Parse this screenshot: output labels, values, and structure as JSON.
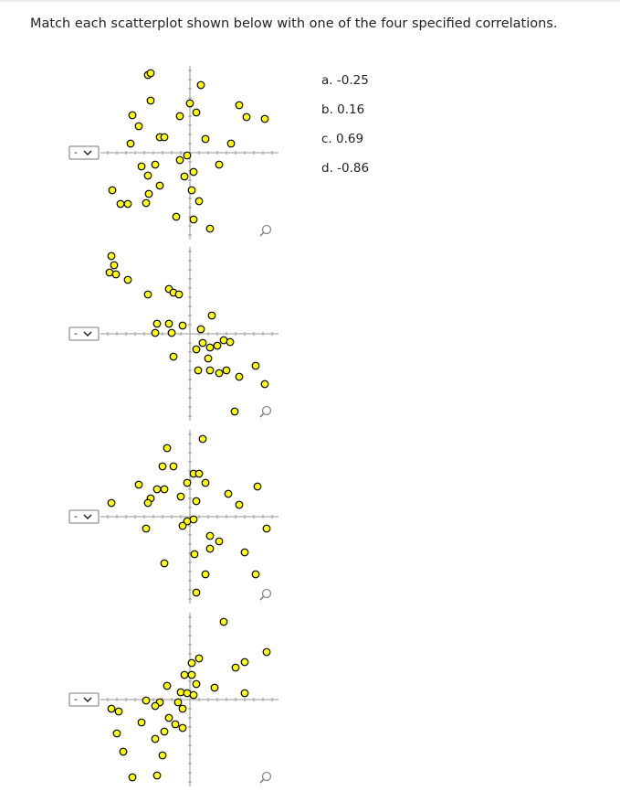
{
  "question": "Match each scatterplot shown below with one of the four specified correlations.",
  "options": [
    "a. -0.25",
    "b. 0.16",
    "c. 0.69",
    "d. -0.86"
  ],
  "plots": [
    {
      "selection": "-",
      "points": {
        "x": [
          -4.6,
          -4.3,
          1.2,
          -4.3,
          0,
          -1.1,
          0.7,
          5.4,
          6.2,
          8.2,
          -6.3,
          -5.6,
          -6.5,
          -3.3,
          -2.8,
          1.7,
          4.5,
          -1.1,
          -0.3,
          3.2,
          -5.3,
          -3.8,
          -4.6,
          -3.3,
          -0.6,
          0.4,
          -8.5,
          -4.5,
          0.2,
          1,
          -7.6,
          -6.8,
          -4.8,
          -1.5,
          0.4,
          2.2
        ],
        "y": [
          8.5,
          8.7,
          7.4,
          5.7,
          5.4,
          4,
          4.4,
          5.2,
          3.9,
          3.7,
          4.1,
          2.9,
          1,
          1.7,
          1.7,
          1.5,
          1,
          -0.8,
          -0.3,
          -1.3,
          -1.5,
          -1.3,
          -2.5,
          -3.6,
          -2.6,
          -2.1,
          -4.1,
          -4.5,
          -4.1,
          -5.3,
          -5.6,
          -5.6,
          -5.5,
          -7,
          -7.3,
          -8.3
        ]
      }
    },
    {
      "selection": "-",
      "points": {
        "x": [
          -8.6,
          -8.3,
          -8.8,
          -8.1,
          -6.8,
          -4.6,
          -2.3,
          -1.8,
          -1.2,
          2.4,
          -3.6,
          -2.3,
          -0.8,
          -3.8,
          -2,
          1.2,
          3.7,
          4.4,
          2.2,
          3,
          0.7,
          1.4,
          -1.8,
          2,
          0.9,
          2.2,
          3.2,
          4,
          5.4,
          7.2,
          8.2,
          4.9
        ],
        "y": [
          8.5,
          7.5,
          6.7,
          6.5,
          5.9,
          4.3,
          4.9,
          4.5,
          4.3,
          2,
          1.1,
          1.1,
          0.9,
          0.1,
          0.1,
          0.5,
          -0.7,
          -0.9,
          -1.5,
          -1.3,
          -1.7,
          -1,
          -2.5,
          -2.7,
          -4,
          -4,
          -4.3,
          -4,
          -4.7,
          -3.5,
          -5.5,
          -8.5
        ]
      }
    },
    {
      "selection": "-",
      "points": {
        "x": [
          1.4,
          -2.5,
          -3,
          -1.8,
          0.4,
          1,
          1.7,
          -5.6,
          -0.3,
          -3.6,
          -2.8,
          -4.3,
          -1,
          7.4,
          -4.6,
          0.7,
          4.2,
          -8.6,
          5.4,
          -0.3,
          0.4,
          -0.8,
          -4.8,
          8.4,
          2.2,
          3.2,
          2.2,
          0.5,
          6,
          -2.8,
          1.7,
          7.2,
          0.7
        ],
        "y": [
          8.5,
          7.5,
          5.5,
          5.5,
          4.7,
          4.7,
          3.7,
          3.5,
          3.7,
          3,
          3,
          2,
          2.2,
          3.3,
          1.5,
          1.7,
          2.5,
          1.5,
          1.3,
          -0.5,
          -0.3,
          -1,
          -1.3,
          -1.3,
          -2.1,
          -2.7,
          -3.5,
          -4.1,
          -3.9,
          -5.1,
          -6.3,
          -6.3,
          -8.3
        ]
      }
    },
    {
      "selection": "-",
      "points": {
        "x": [
          3.7,
          1,
          0.2,
          6,
          5,
          8.4,
          -0.6,
          0.2,
          -2.5,
          0.7,
          2.7,
          -1,
          -0.3,
          0.4,
          6,
          -4.8,
          -3.3,
          -1.3,
          -3.8,
          -8.6,
          -7.8,
          -0.8,
          -5.3,
          -2.3,
          -1.6,
          -0.8,
          -2.8,
          -8,
          -3.8,
          -7.3,
          -3,
          -3.6,
          -6.3
        ],
        "y": [
          8.5,
          4.5,
          4,
          4.1,
          3.5,
          5.2,
          2.7,
          2.7,
          1.5,
          1.7,
          1.3,
          0.8,
          0.7,
          0.5,
          0.7,
          -0.1,
          -0.3,
          -0.3,
          -0.7,
          -1,
          -1.3,
          -1,
          -2.5,
          -2,
          -2.7,
          -3.1,
          -3.5,
          -3.7,
          -4.3,
          -5.7,
          -6.1,
          -8.3,
          -8.5
        ]
      }
    }
  ]
}
